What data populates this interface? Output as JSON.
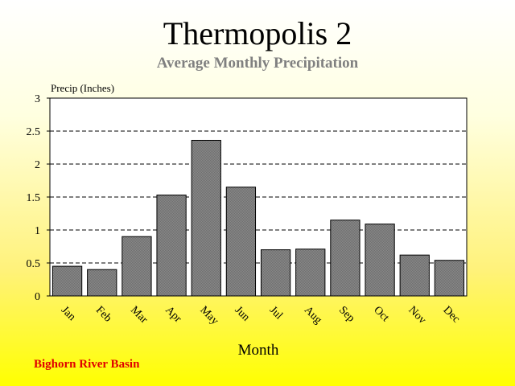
{
  "header": {
    "title": "Thermopolis 2",
    "subtitle": "Average Monthly Precipitation"
  },
  "footer": {
    "basin": "Bighorn River Basin"
  },
  "chart_data": {
    "type": "bar",
    "categories": [
      "Jan",
      "Feb",
      "Mar",
      "Apr",
      "May",
      "Jun",
      "Jul",
      "Aug",
      "Sep",
      "Oct",
      "Nov",
      "Dec"
    ],
    "values": [
      0.45,
      0.4,
      0.9,
      1.53,
      2.36,
      1.65,
      0.7,
      0.71,
      1.15,
      1.09,
      0.62,
      0.54
    ],
    "ylabel": "Precip (Inches)",
    "xlabel": "Month",
    "ylim": [
      0,
      3
    ],
    "yticks": [
      "0",
      "0.5",
      "1",
      "1.5",
      "2",
      "2.5",
      "3"
    ],
    "grid": true,
    "colors": {
      "bar": "#808080",
      "bar_border": "#000000",
      "plot_bg": "#ffffff"
    }
  }
}
